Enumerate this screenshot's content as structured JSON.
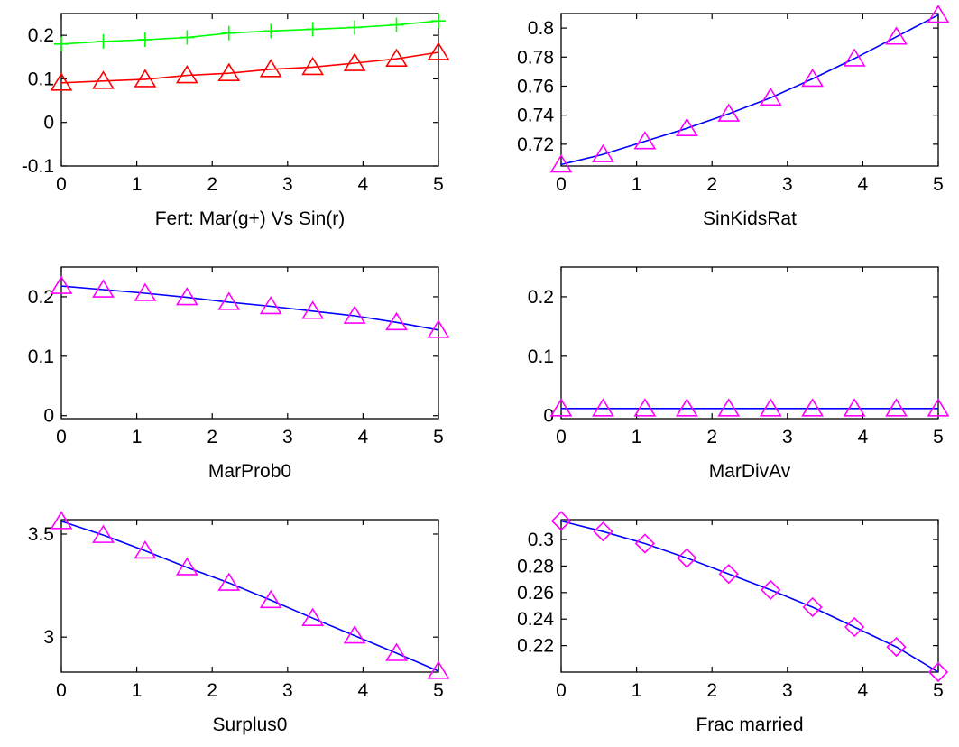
{
  "chart_data": [
    {
      "type": "line",
      "xlabel": "Fert: Mar(g+) Vs Sin(r)",
      "xlim": [
        0,
        5
      ],
      "ylim": [
        -0.1,
        0.25
      ],
      "xticks": [
        0,
        1,
        2,
        3,
        4,
        5
      ],
      "yticks": [
        -0.1,
        0,
        0.1,
        0.2
      ],
      "ytick_labels": [
        "-0.1",
        "0",
        "0.1",
        "0.2"
      ],
      "series": [
        {
          "color": "#00ff00",
          "marker": "plus",
          "x": [
            0,
            0.556,
            1.111,
            1.667,
            2.222,
            2.778,
            3.333,
            3.889,
            4.444,
            5
          ],
          "y": [
            0.18,
            0.186,
            0.19,
            0.195,
            0.205,
            0.21,
            0.214,
            0.218,
            0.224,
            0.233
          ]
        },
        {
          "color": "#ff0000",
          "marker": "triangle",
          "x": [
            0,
            0.556,
            1.111,
            1.667,
            2.222,
            2.778,
            3.333,
            3.889,
            4.444,
            5
          ],
          "y": [
            0.091,
            0.095,
            0.099,
            0.108,
            0.113,
            0.122,
            0.127,
            0.136,
            0.146,
            0.161
          ]
        }
      ]
    },
    {
      "type": "line",
      "xlabel": "SinKidsRat",
      "xlim": [
        0,
        5
      ],
      "ylim": [
        0.705,
        0.81
      ],
      "xticks": [
        0,
        1,
        2,
        3,
        4,
        5
      ],
      "yticks": [
        0.72,
        0.74,
        0.76,
        0.78,
        0.8
      ],
      "ytick_labels": [
        "0.72",
        "0.74",
        "0.76",
        "0.78",
        "0.8"
      ],
      "series": [
        {
          "color": "#0000ff",
          "marker": "triangle",
          "marker_color": "#ff00ff",
          "x": [
            0,
            0.556,
            1.111,
            1.667,
            2.222,
            2.778,
            3.333,
            3.889,
            4.444,
            5
          ],
          "y": [
            0.706,
            0.713,
            0.722,
            0.731,
            0.741,
            0.752,
            0.765,
            0.779,
            0.794,
            0.809
          ]
        }
      ]
    },
    {
      "type": "line",
      "xlabel": "MarProb0",
      "xlim": [
        0,
        5
      ],
      "ylim": [
        -0.005,
        0.25
      ],
      "xticks": [
        0,
        1,
        2,
        3,
        4,
        5
      ],
      "yticks": [
        0,
        0.1,
        0.2
      ],
      "ytick_labels": [
        "0",
        "0.1",
        "0.2"
      ],
      "series": [
        {
          "color": "#0000ff",
          "marker": "triangle",
          "marker_color": "#ff00ff",
          "x": [
            0,
            0.556,
            1.111,
            1.667,
            2.222,
            2.778,
            3.333,
            3.889,
            4.444,
            5
          ],
          "y": [
            0.218,
            0.212,
            0.206,
            0.199,
            0.191,
            0.184,
            0.176,
            0.168,
            0.157,
            0.144
          ]
        }
      ]
    },
    {
      "type": "line",
      "xlabel": "MarDivAv",
      "xlim": [
        0,
        5
      ],
      "ylim": [
        -0.005,
        0.25
      ],
      "xticks": [
        0,
        1,
        2,
        3,
        4,
        5
      ],
      "yticks": [
        0,
        0.1,
        0.2
      ],
      "ytick_labels": [
        "0",
        "0.1",
        "0.2"
      ],
      "series": [
        {
          "color": "#0000ff",
          "marker": "triangle",
          "marker_color": "#ff00ff",
          "x": [
            0,
            0.556,
            1.111,
            1.667,
            2.222,
            2.778,
            3.333,
            3.889,
            4.444,
            5
          ],
          "y": [
            0.012,
            0.012,
            0.012,
            0.012,
            0.012,
            0.012,
            0.012,
            0.012,
            0.012,
            0.012
          ]
        }
      ]
    },
    {
      "type": "line",
      "xlabel": "Surplus0",
      "xlim": [
        0,
        5
      ],
      "ylim": [
        2.83,
        3.57
      ],
      "xticks": [
        0,
        1,
        2,
        3,
        4,
        5
      ],
      "yticks": [
        3,
        3.5
      ],
      "ytick_labels": [
        "3",
        "3.5"
      ],
      "series": [
        {
          "color": "#0000ff",
          "marker": "triangle",
          "marker_color": "#ff00ff",
          "x": [
            0,
            0.556,
            1.111,
            1.667,
            2.222,
            2.778,
            3.333,
            3.889,
            4.444,
            5
          ],
          "y": [
            3.562,
            3.495,
            3.419,
            3.338,
            3.263,
            3.179,
            3.092,
            3.007,
            2.922,
            2.835
          ]
        }
      ]
    },
    {
      "type": "line",
      "xlabel": "Frac married",
      "xlim": [
        0,
        5
      ],
      "ylim": [
        0.2,
        0.315
      ],
      "xticks": [
        0,
        1,
        2,
        3,
        4,
        5
      ],
      "yticks": [
        0.22,
        0.24,
        0.26,
        0.28,
        0.3
      ],
      "ytick_labels": [
        "0.22",
        "0.24",
        "0.26",
        "0.28",
        "0.3"
      ],
      "series": [
        {
          "color": "#0000ff",
          "marker": "diamond",
          "marker_color": "#ff00ff",
          "x": [
            0,
            0.556,
            1.111,
            1.667,
            2.222,
            2.778,
            3.333,
            3.889,
            4.444,
            5
          ],
          "y": [
            0.314,
            0.306,
            0.297,
            0.286,
            0.274,
            0.262,
            0.249,
            0.234,
            0.219,
            0.2
          ]
        }
      ]
    }
  ]
}
